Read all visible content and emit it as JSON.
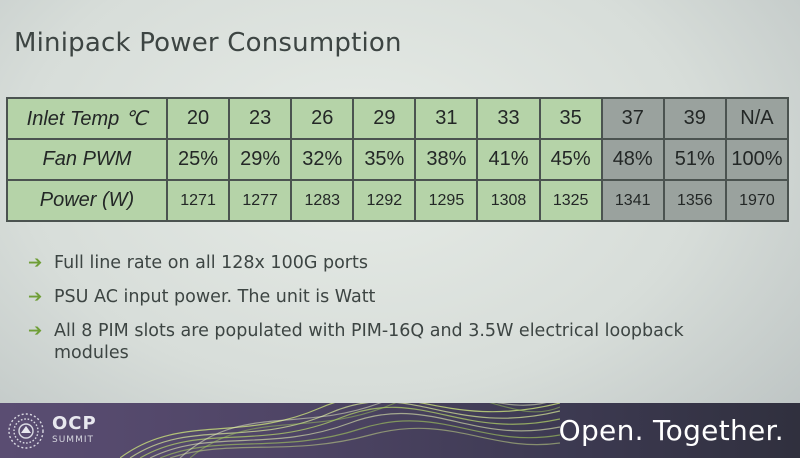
{
  "title": "Minipack Power Consumption",
  "table": {
    "rows": [
      {
        "label": "Inlet Temp ℃",
        "cells": [
          "20",
          "23",
          "26",
          "29",
          "31",
          "33",
          "35",
          "37",
          "39",
          "N/A"
        ]
      },
      {
        "label": "Fan PWM",
        "cells": [
          "25%",
          "29%",
          "32%",
          "35%",
          "38%",
          "41%",
          "45%",
          "48%",
          "51%",
          "100%"
        ]
      },
      {
        "label": "Power (W)",
        "cells": [
          "1271",
          "1277",
          "1283",
          "1292",
          "1295",
          "1308",
          "1325",
          "1341",
          "1356",
          "1970"
        ]
      }
    ]
  },
  "bullets": [
    "Full line rate on all 128x 100G ports",
    "PSU AC input power. The unit is Watt",
    "All 8 PIM slots are populated with PIM-16Q and 3.5W electrical loopback modules"
  ],
  "bullet_icon": "right-arrow-icon",
  "footer": {
    "logo_main": "OCP",
    "logo_sub": "SUMMIT",
    "tagline": "Open. Together."
  },
  "colors": {
    "table_green": "#b5d3a8",
    "table_gray": "#9aa29e",
    "arrow_green": "#6f9e36",
    "footer_purple": "#5a4d72"
  }
}
